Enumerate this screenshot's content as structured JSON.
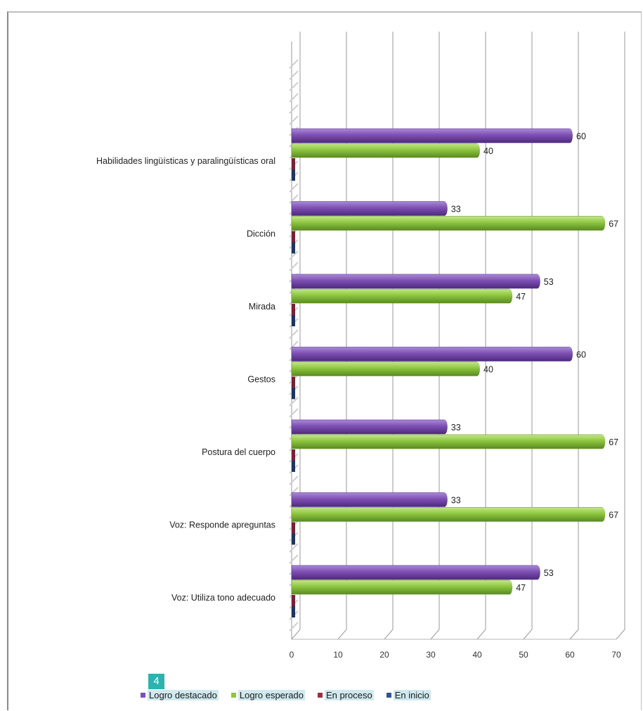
{
  "badge": "4",
  "chart_data": {
    "type": "bar",
    "orientation": "horizontal",
    "style": "3d clustered bar",
    "categories": [
      "Habilidades lingüísticas y paralingüísticas oral",
      "Dicción",
      "Mirada",
      "Gestos",
      "Postura del cuerpo",
      "Voz: Responde apreguntas",
      "Voz: Utiliza tono adecuado"
    ],
    "series": [
      {
        "name": "Logro destacado",
        "color": "#7e4fb3",
        "values": [
          60,
          33,
          53,
          60,
          33,
          33,
          53
        ],
        "labels": [
          "60",
          "33",
          "53",
          "60",
          "33",
          "33",
          "53"
        ]
      },
      {
        "name": "Logro esperado",
        "color": "#8dc63f",
        "values": [
          40,
          67,
          47,
          40,
          67,
          67,
          47
        ],
        "labels": [
          "40",
          "67",
          "47",
          "40",
          "67",
          "67",
          "47"
        ]
      },
      {
        "name": "En proceso",
        "color": "#9b2f45",
        "values": [
          0,
          0,
          0,
          0,
          0,
          0,
          0
        ]
      },
      {
        "name": "En inicio",
        "color": "#2f5597",
        "values": [
          0,
          0,
          0,
          0,
          0,
          0,
          0
        ]
      }
    ],
    "x_ticks": [
      "0",
      "10",
      "20",
      "30",
      "40",
      "50",
      "60",
      "70"
    ],
    "xlim": [
      0,
      70
    ],
    "grid": true,
    "legend_position": "bottom"
  }
}
